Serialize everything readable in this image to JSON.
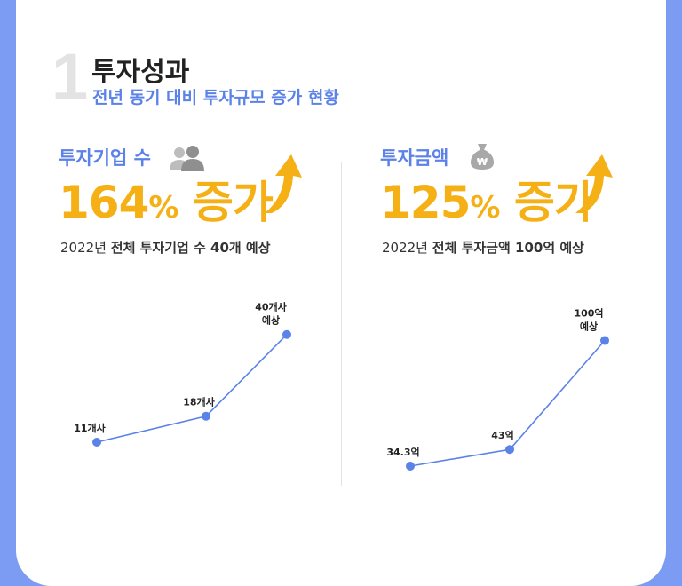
{
  "section": {
    "number": "1",
    "title": "투자성과",
    "subtitle": "전년 동기 대비 투자규모 증가 현황"
  },
  "colors": {
    "accent_blue": "#5b82e8",
    "accent_orange": "#f5b016",
    "background": "#7b9cf2"
  },
  "panels": [
    {
      "label": "투자기업 수",
      "icon": "people-icon",
      "value": "164",
      "value_unit": "%",
      "value_suffix": "증가",
      "desc_year": "2022년",
      "desc_text": "전체 투자기업 수 40개 예상"
    },
    {
      "label": "투자금액",
      "icon": "money-bag-icon",
      "value": "125",
      "value_unit": "%",
      "value_suffix": "증가",
      "desc_year": "2022년",
      "desc_text": "전체 투자금액 100억 예상"
    }
  ],
  "chart_data": [
    {
      "type": "line",
      "title": "",
      "x": [
        1,
        2,
        3
      ],
      "values": [
        11,
        18,
        40
      ],
      "labels": [
        [
          "11개사"
        ],
        [
          "18개사"
        ],
        [
          "40개사",
          "예상"
        ]
      ],
      "ylim": [
        0,
        44
      ],
      "grid": false,
      "color": "#5b82e8"
    },
    {
      "type": "line",
      "title": "",
      "x": [
        1,
        2,
        3
      ],
      "values": [
        34.3,
        43,
        100
      ],
      "labels": [
        [
          "34.3억"
        ],
        [
          "43억"
        ],
        [
          "100억",
          "예상"
        ]
      ],
      "ylim": [
        25,
        110
      ],
      "grid": false,
      "color": "#5b82e8"
    }
  ]
}
